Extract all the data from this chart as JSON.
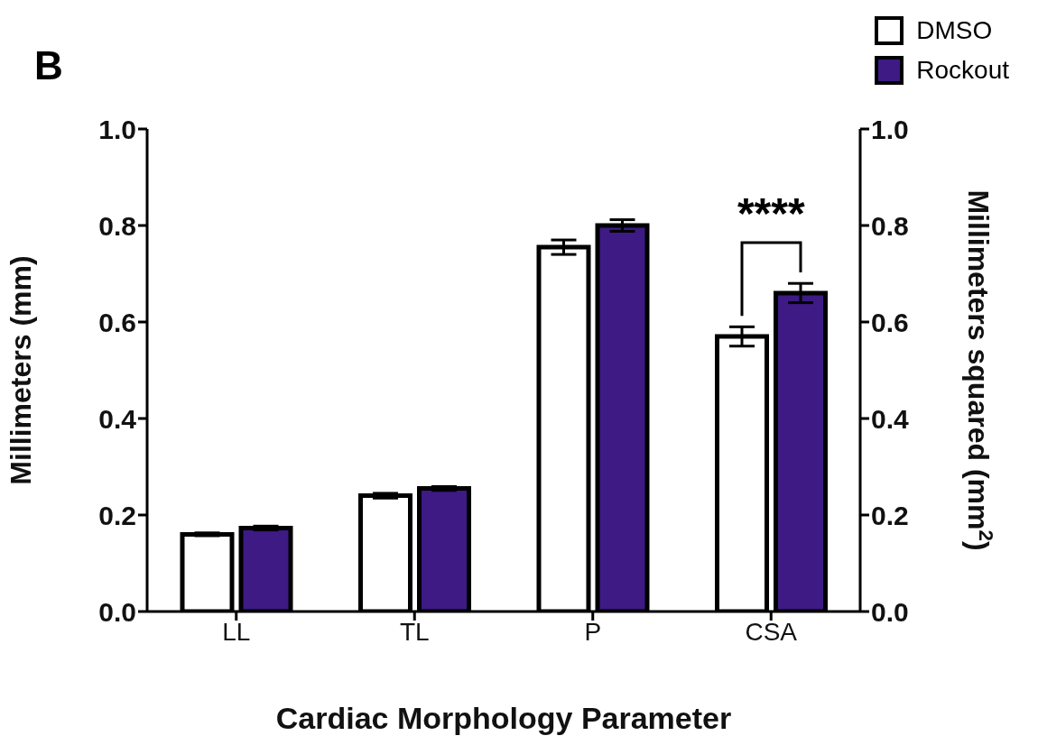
{
  "chart_data": {
    "type": "bar",
    "title": "B",
    "xlabel": "Cardiac Morphology Parameter",
    "ylabel": "Millimeters (mm)",
    "y2label": "Millimeters squared (mm$^{2}$)",
    "categories": [
      "LL",
      "TL",
      "P",
      "CSA"
    ],
    "series": [
      {
        "name": "DMSO",
        "color": "#ffffff",
        "values": [
          0.16,
          0.24,
          0.755,
          0.57
        ],
        "errors": [
          0.003,
          0.005,
          0.015,
          0.02
        ]
      },
      {
        "name": "Rockout",
        "color": "#3d1a84",
        "values": [
          0.173,
          0.255,
          0.8,
          0.66
        ],
        "errors": [
          0.004,
          0.004,
          0.012,
          0.02
        ]
      }
    ],
    "ylim": [
      0,
      1
    ],
    "yticks": [
      {
        "value": 0,
        "label": "0.0"
      },
      {
        "value": 0.2,
        "label": "0.2"
      },
      {
        "value": 0.4,
        "label": "0.4"
      },
      {
        "value": 0.6,
        "label": "0.6"
      },
      {
        "value": 0.8,
        "label": "0.8"
      },
      {
        "value": 1,
        "label": "1.0"
      }
    ],
    "y2lim": [
      0,
      1
    ],
    "y2ticks": [
      {
        "value": 0,
        "label": "0.0"
      },
      {
        "value": 0.2,
        "label": "0.2"
      },
      {
        "value": 0.4,
        "label": "0.4"
      },
      {
        "value": 0.6,
        "label": "0.6"
      },
      {
        "value": 0.8,
        "label": "0.8"
      },
      {
        "value": 1,
        "label": "1.0"
      }
    ],
    "annotations": [
      "****"
    ],
    "legend": "top right"
  }
}
